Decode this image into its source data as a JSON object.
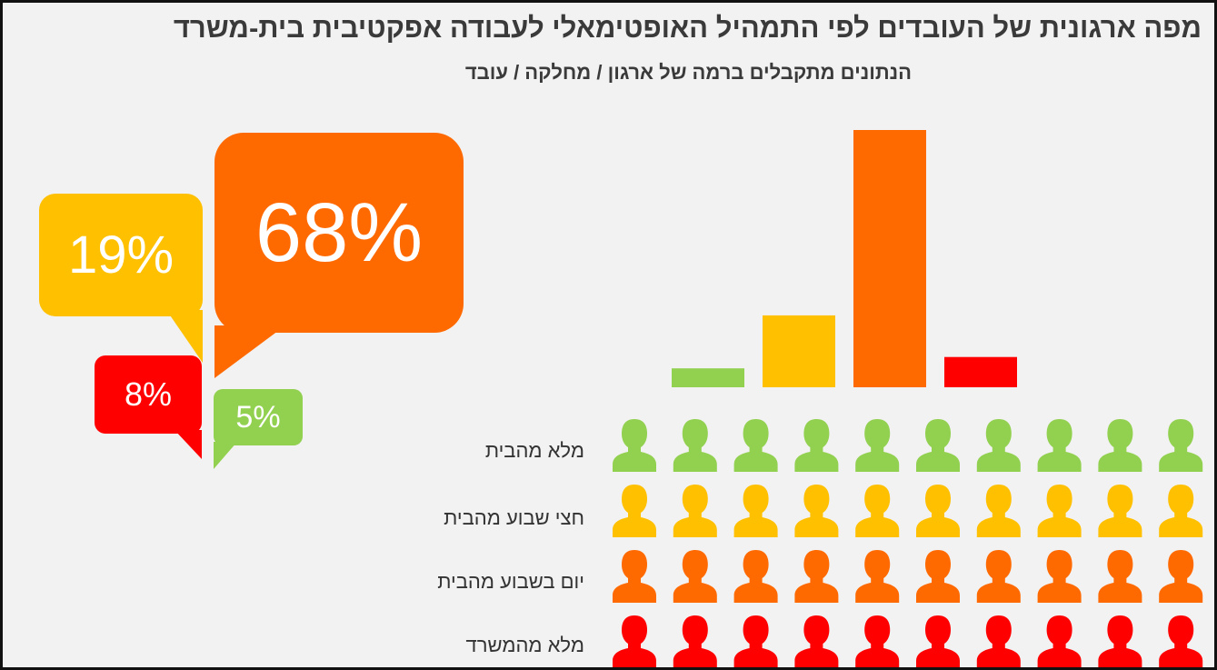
{
  "title": "מפה ארגונית של העובדים לפי התמהיל האופטימאלי לעבודה אפקטיבית בית-משרד",
  "subtitle": "הנתונים מתקבלים ברמה של ארגון / מחלקה / עובד",
  "colors": {
    "green": "#92d050",
    "yellow": "#ffc000",
    "orange": "#ff6a00",
    "red": "#ff0000",
    "background": "#f2f2f2",
    "text": "#3a3a3a"
  },
  "callouts": {
    "full_home": "5%",
    "half_week_home": "19%",
    "day_week_home": "68%",
    "full_office": "8%"
  },
  "rows": [
    {
      "label": "מלא מהבית",
      "color": "#92d050",
      "icon": "person-icon",
      "count": 10
    },
    {
      "label": "חצי שבוע מהבית",
      "color": "#ffc000",
      "icon": "person-icon",
      "count": 10
    },
    {
      "label": "יום בשבוע מהבית",
      "color": "#ff6a00",
      "icon": "person-icon",
      "count": 10
    },
    {
      "label": "מלא מהמשרד",
      "color": "#ff0000",
      "icon": "person-icon",
      "count": 10
    }
  ],
  "chart_data": {
    "type": "bar",
    "title": "",
    "xlabel": "",
    "ylabel": "",
    "ylim": [
      0,
      68
    ],
    "grid": false,
    "categories": [
      "מלא מהבית",
      "חצי שבוע מהבית",
      "יום בשבוע מהבית",
      "מלא מהמשרד"
    ],
    "values": [
      5,
      19,
      68,
      8
    ],
    "colors": [
      "#92d050",
      "#ffc000",
      "#ff6a00",
      "#ff0000"
    ]
  }
}
